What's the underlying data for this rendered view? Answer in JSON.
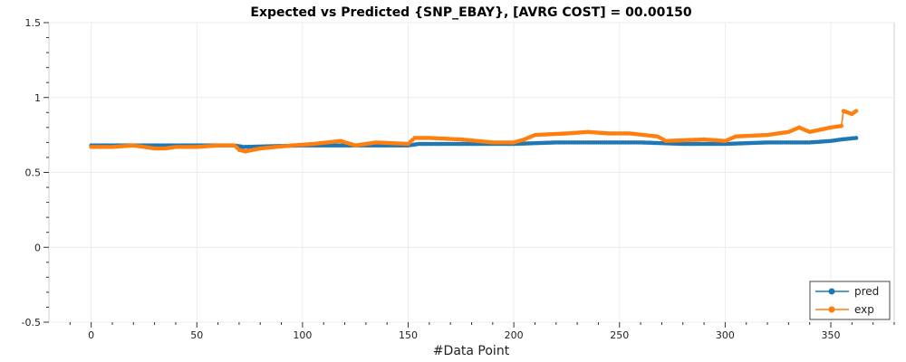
{
  "chart_data": {
    "type": "line",
    "title": "Expected vs Predicted {SNP_EBAY}, [AVRG COST] = 00.00150",
    "xlabel": "#Data Point",
    "ylabel": "",
    "xlim": [
      -20,
      380
    ],
    "ylim": [
      -0.5,
      1.5
    ],
    "xticks": [
      0,
      50,
      100,
      150,
      200,
      250,
      300,
      350
    ],
    "yticks": [
      -0.5,
      0,
      0.5,
      1,
      1.5
    ],
    "ytick_labels": [
      "-0.5",
      "0",
      "0.5",
      "1",
      "1.5"
    ],
    "grid": true,
    "legend_position": "bottom-right",
    "series": [
      {
        "name": "pred",
        "color": "#1f77b4",
        "points": [
          [
            0,
            0.68
          ],
          [
            20,
            0.68
          ],
          [
            40,
            0.68
          ],
          [
            68,
            0.68
          ],
          [
            72,
            0.67
          ],
          [
            100,
            0.68
          ],
          [
            130,
            0.68
          ],
          [
            150,
            0.68
          ],
          [
            155,
            0.69
          ],
          [
            170,
            0.69
          ],
          [
            200,
            0.69
          ],
          [
            220,
            0.7
          ],
          [
            240,
            0.7
          ],
          [
            260,
            0.7
          ],
          [
            280,
            0.69
          ],
          [
            300,
            0.69
          ],
          [
            320,
            0.7
          ],
          [
            340,
            0.7
          ],
          [
            350,
            0.71
          ],
          [
            355,
            0.72
          ],
          [
            362,
            0.73
          ]
        ]
      },
      {
        "name": "exp",
        "color": "#ff7f0e",
        "points": [
          [
            0,
            0.67
          ],
          [
            10,
            0.67
          ],
          [
            20,
            0.68
          ],
          [
            30,
            0.66
          ],
          [
            35,
            0.66
          ],
          [
            40,
            0.67
          ],
          [
            50,
            0.67
          ],
          [
            60,
            0.68
          ],
          [
            68,
            0.68
          ],
          [
            70,
            0.65
          ],
          [
            73,
            0.64
          ],
          [
            80,
            0.66
          ],
          [
            95,
            0.68
          ],
          [
            105,
            0.69
          ],
          [
            118,
            0.71
          ],
          [
            125,
            0.68
          ],
          [
            135,
            0.7
          ],
          [
            150,
            0.69
          ],
          [
            153,
            0.73
          ],
          [
            160,
            0.73
          ],
          [
            175,
            0.72
          ],
          [
            190,
            0.7
          ],
          [
            200,
            0.7
          ],
          [
            205,
            0.72
          ],
          [
            210,
            0.75
          ],
          [
            225,
            0.76
          ],
          [
            235,
            0.77
          ],
          [
            245,
            0.76
          ],
          [
            255,
            0.76
          ],
          [
            268,
            0.74
          ],
          [
            272,
            0.71
          ],
          [
            290,
            0.72
          ],
          [
            300,
            0.71
          ],
          [
            305,
            0.74
          ],
          [
            320,
            0.75
          ],
          [
            330,
            0.77
          ],
          [
            335,
            0.8
          ],
          [
            340,
            0.77
          ],
          [
            350,
            0.8
          ],
          [
            355,
            0.81
          ],
          [
            356,
            0.91
          ],
          [
            360,
            0.89
          ],
          [
            362,
            0.91
          ]
        ]
      }
    ]
  }
}
